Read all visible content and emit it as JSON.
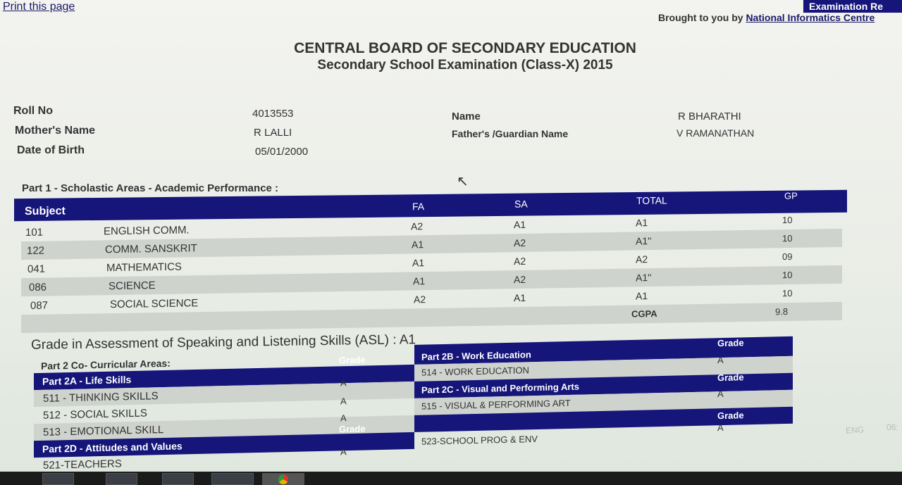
{
  "header": {
    "print_link": "Print this page",
    "brought_by": "Brought to you by",
    "nic_link": "National Informatics Centre",
    "corner_text": "Examination Re"
  },
  "title": {
    "board": "CENTRAL BOARD OF SECONDARY EDUCATION",
    "exam": "Secondary School Examination (Class-X) 2015"
  },
  "student": {
    "roll_label": "Roll No",
    "roll": "4013553",
    "name_label": "Name",
    "name": "R BHARATHI",
    "mother_label": "Mother's Name",
    "mother": "R LALLI",
    "father_label": "Father's /Guardian Name",
    "father": "V RAMANATHAN",
    "dob_label": "Date of Birth",
    "dob": "05/01/2000"
  },
  "part1": {
    "heading": "Part 1 - Scholastic Areas - Academic Performance :",
    "columns": {
      "subject": "Subject",
      "fa": "FA",
      "sa": "SA",
      "total": "TOTAL",
      "gp": "GP"
    },
    "rows": [
      {
        "code": "101",
        "name": "ENGLISH COMM.",
        "fa": "A2",
        "sa": "A1",
        "total": "A1",
        "gp": "10"
      },
      {
        "code": "122",
        "name": "COMM. SANSKRIT",
        "fa": "A1",
        "sa": "A2",
        "total": "A1''",
        "gp": "10"
      },
      {
        "code": "041",
        "name": "MATHEMATICS",
        "fa": "A1",
        "sa": "A2",
        "total": "A2",
        "gp": "09"
      },
      {
        "code": "086",
        "name": "SCIENCE",
        "fa": "A1",
        "sa": "A2",
        "total": "A1''",
        "gp": "10"
      },
      {
        "code": "087",
        "name": "SOCIAL SCIENCE",
        "fa": "A2",
        "sa": "A1",
        "total": "A1",
        "gp": "10"
      }
    ],
    "cgpa_label": "CGPA",
    "cgpa": "9.8"
  },
  "asl": "Grade in Assessment of Speaking and Listening Skills (ASL) : A1",
  "part2": {
    "heading": "Part 2 Co- Curricular Areas:",
    "grade_label": "Grade",
    "p2a": {
      "title": "Part 2A - Life Skills",
      "rows": [
        {
          "name": "511 - THINKING SKILLS",
          "grade": "A"
        },
        {
          "name": "512 - SOCIAL SKILLS",
          "grade": "A"
        },
        {
          "name": "513 - EMOTIONAL SKILL",
          "grade": "A"
        }
      ]
    },
    "p2b": {
      "title": "Part 2B - Work Education",
      "rows": [
        {
          "name": "514 - WORK EDUCATION",
          "grade": "A"
        }
      ]
    },
    "p2c": {
      "title": "Part 2C - Visual and Performing Arts",
      "rows": [
        {
          "name": "515 - VISUAL & PERFORMING ART",
          "grade": "A"
        }
      ]
    },
    "p2d": {
      "title": "Part 2D - Attitudes and Values",
      "rows": [
        {
          "name": "521-TEACHERS",
          "grade": "A"
        }
      ]
    },
    "p2e": {
      "rows": [
        {
          "name": "523-SCHOOL PROG & ENV",
          "grade": "A"
        }
      ]
    }
  },
  "taskbar": {
    "lang": "ENG",
    "clock": "06:"
  },
  "colors": {
    "header_bar": "#15157a",
    "alt_row": "#cfd3cd"
  }
}
